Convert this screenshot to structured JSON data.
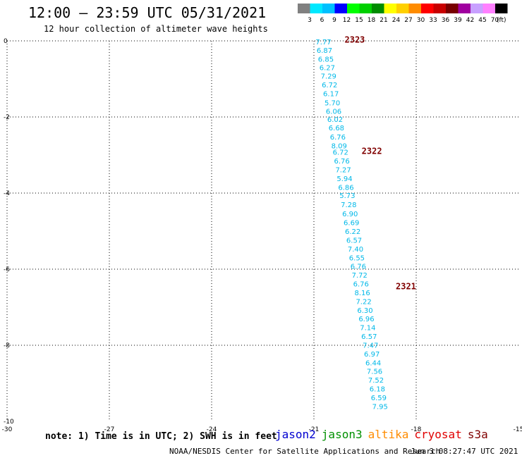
{
  "header": {
    "title": "12:00 – 23:59 UTC 05/31/2021",
    "subtitle": "12 hour collection of altimeter wave heights"
  },
  "legend": {
    "unit": "(ft)",
    "items": [
      {
        "color": "#808080",
        "label": "3"
      },
      {
        "color": "#00e8ff",
        "label": "6"
      },
      {
        "color": "#00c0ff",
        "label": "9"
      },
      {
        "color": "#0000ff",
        "label": "12"
      },
      {
        "color": "#00ff00",
        "label": "15"
      },
      {
        "color": "#00d000",
        "label": "18"
      },
      {
        "color": "#008c00",
        "label": "21"
      },
      {
        "color": "#ffff00",
        "label": "24"
      },
      {
        "color": "#ffd000",
        "label": "27"
      },
      {
        "color": "#ff8c00",
        "label": "30"
      },
      {
        "color": "#ff0000",
        "label": "33"
      },
      {
        "color": "#c80000",
        "label": "36"
      },
      {
        "color": "#780000",
        "label": "39"
      },
      {
        "color": "#a000a0",
        "label": "42"
      },
      {
        "color": "#c8a0ff",
        "label": "45"
      },
      {
        "color": "#ff80ff",
        "label": "70"
      },
      {
        "color": "#000000",
        "label": ""
      }
    ]
  },
  "map": {
    "x_ticks": [
      "-30",
      "-27",
      "-24",
      "-21",
      "-18",
      "-15"
    ],
    "y_ticks": [
      "0",
      "-2",
      "-4",
      "-6",
      "-8",
      "-10"
    ],
    "lon_range": [
      -30,
      -15
    ],
    "lat_range": [
      -10,
      0
    ],
    "value_color": "#00b8e8",
    "time_color": "#800000",
    "track": [
      {
        "lon": -20.95,
        "lat": -0.02,
        "v": "7.77"
      },
      {
        "lon": -20.92,
        "lat": -0.24,
        "v": "6.87"
      },
      {
        "lon": -20.88,
        "lat": -0.47,
        "v": "6.85"
      },
      {
        "lon": -20.84,
        "lat": -0.69,
        "v": "6.27"
      },
      {
        "lon": -20.8,
        "lat": -0.92,
        "v": "7.29"
      },
      {
        "lon": -20.77,
        "lat": -1.15,
        "v": "6.72"
      },
      {
        "lon": -20.73,
        "lat": -1.38,
        "v": "6.17"
      },
      {
        "lon": -20.69,
        "lat": -1.62,
        "v": "5.70"
      },
      {
        "lon": -20.65,
        "lat": -1.84,
        "v": "6.06"
      },
      {
        "lon": -20.61,
        "lat": -2.06,
        "v": "6.02"
      },
      {
        "lon": -20.57,
        "lat": -2.28,
        "v": "6.68"
      },
      {
        "lon": -20.53,
        "lat": -2.52,
        "v": "6.76"
      },
      {
        "lon": -20.49,
        "lat": -2.75,
        "v": "8.09"
      },
      {
        "lon": -20.45,
        "lat": -2.92,
        "v": "6.72"
      },
      {
        "lon": -20.41,
        "lat": -3.15,
        "v": "6.76"
      },
      {
        "lon": -20.37,
        "lat": -3.38,
        "v": "7.27"
      },
      {
        "lon": -20.33,
        "lat": -3.61,
        "v": "5.94"
      },
      {
        "lon": -20.29,
        "lat": -3.84,
        "v": "6.86"
      },
      {
        "lon": -20.25,
        "lat": -4.06,
        "v": "5.73"
      },
      {
        "lon": -20.21,
        "lat": -4.3,
        "v": "7.28"
      },
      {
        "lon": -20.17,
        "lat": -4.54,
        "v": "6.90"
      },
      {
        "lon": -20.13,
        "lat": -4.77,
        "v": "6.69"
      },
      {
        "lon": -20.09,
        "lat": -5.0,
        "v": "6.22"
      },
      {
        "lon": -20.05,
        "lat": -5.23,
        "v": "6.57"
      },
      {
        "lon": -20.01,
        "lat": -5.46,
        "v": "7.40"
      },
      {
        "lon": -19.97,
        "lat": -5.69,
        "v": "6.55"
      },
      {
        "lon": -19.93,
        "lat": -5.92,
        "v": "6.76"
      },
      {
        "lon": -19.89,
        "lat": -6.15,
        "v": "7.72"
      },
      {
        "lon": -19.85,
        "lat": -6.38,
        "v": "6.76"
      },
      {
        "lon": -19.81,
        "lat": -6.61,
        "v": "8.16"
      },
      {
        "lon": -19.77,
        "lat": -6.84,
        "v": "7.22"
      },
      {
        "lon": -19.73,
        "lat": -7.07,
        "v": "6.30"
      },
      {
        "lon": -19.69,
        "lat": -7.3,
        "v": "6.96"
      },
      {
        "lon": -19.65,
        "lat": -7.53,
        "v": "7.14"
      },
      {
        "lon": -19.61,
        "lat": -7.76,
        "v": "6.57"
      },
      {
        "lon": -19.57,
        "lat": -7.99,
        "v": "7.47"
      },
      {
        "lon": -19.53,
        "lat": -8.22,
        "v": "6.97"
      },
      {
        "lon": -19.49,
        "lat": -8.45,
        "v": "6.44"
      },
      {
        "lon": -19.45,
        "lat": -8.68,
        "v": "7.56"
      },
      {
        "lon": -19.41,
        "lat": -8.91,
        "v": "7.52"
      },
      {
        "lon": -19.37,
        "lat": -9.14,
        "v": "6.18"
      },
      {
        "lon": -19.33,
        "lat": -9.37,
        "v": "6.59"
      },
      {
        "lon": -19.29,
        "lat": -9.6,
        "v": "7.95"
      }
    ],
    "time_labels": [
      {
        "lon": -20.1,
        "lat": 0.03,
        "t": "2323"
      },
      {
        "lon": -19.6,
        "lat": -2.9,
        "t": "2322"
      },
      {
        "lon": -18.6,
        "lat": -6.45,
        "t": "2321"
      }
    ]
  },
  "footer": {
    "note": "note: 1) Time is in UTC; 2) SWH is in feet",
    "satellites": [
      {
        "name": "jason2",
        "color": "#0000d0"
      },
      {
        "name": "jason3",
        "color": "#009000"
      },
      {
        "name": "altika",
        "color": "#ff8c00"
      },
      {
        "name": "cryosat",
        "color": "#e00000"
      },
      {
        "name": "s3a",
        "color": "#800000"
      }
    ],
    "credit": "NOAA/NESDIS Center for Satellite Applications and Research",
    "timestamp": "Jun  3 08:27:47 UTC 2021"
  }
}
